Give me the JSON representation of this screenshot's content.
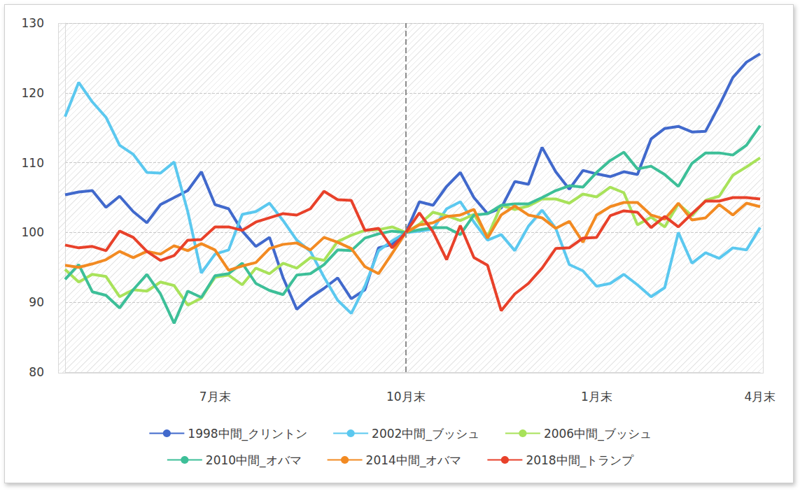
{
  "chart_data": {
    "type": "line",
    "categories": [
      null,
      null,
      null,
      null,
      null,
      null,
      null,
      null,
      null,
      null,
      null,
      "7月末",
      null,
      null,
      null,
      null,
      null,
      null,
      null,
      null,
      null,
      null,
      null,
      null,
      null,
      "10月末",
      null,
      null,
      null,
      null,
      null,
      null,
      null,
      null,
      null,
      null,
      null,
      null,
      null,
      "1月末",
      null,
      null,
      null,
      null,
      null,
      null,
      null,
      null,
      null,
      null,
      null,
      "4月末"
    ],
    "series": [
      {
        "name": "1998中間_クリントン",
        "color": "#4169cc",
        "values": [
          105.4,
          105.8,
          106,
          103.6,
          105.2,
          103,
          101.4,
          104,
          105,
          106,
          108.7,
          104,
          103.4,
          100.2,
          98,
          99.3,
          93.5,
          89,
          90.7,
          92,
          93.5,
          90.5,
          91.8,
          97.8,
          98.3,
          100,
          104.4,
          103.9,
          106.6,
          108.6,
          105,
          102.7,
          103.5,
          107.3,
          106.9,
          112.2,
          108.7,
          106.2,
          108.9,
          108.4,
          108,
          108.7,
          108.3,
          113.4,
          114.9,
          115.2,
          114.4,
          114.5,
          118.2,
          122.2,
          124.4,
          125.6
        ]
      },
      {
        "name": "2002中間_ブッシュ",
        "color": "#5bc8ef",
        "values": [
          116.6,
          121.5,
          118.7,
          116.5,
          112.5,
          111.2,
          108.6,
          108.5,
          110.1,
          103,
          94.2,
          96.9,
          97.5,
          102.6,
          103,
          104.2,
          101.7,
          98.9,
          97.3,
          93.6,
          90.3,
          88.4,
          92.3,
          97.4,
          98.8,
          100,
          100.2,
          100.5,
          103.4,
          104.4,
          101.5,
          98.9,
          99.7,
          97.4,
          100.9,
          103.2,
          100.6,
          95.4,
          94.5,
          92.3,
          92.7,
          94,
          92.5,
          90.8,
          92.1,
          100,
          95.6,
          97.1,
          96.3,
          97.8,
          97.5,
          100.7
        ]
      },
      {
        "name": "2006中間_ブッシュ",
        "color": "#a8e25a",
        "values": [
          94.7,
          92.9,
          94,
          93.7,
          90.8,
          91.8,
          91.6,
          92.9,
          92.4,
          89.6,
          90.6,
          93.6,
          93.9,
          92.5,
          94.9,
          94.1,
          95.6,
          94.9,
          96.4,
          96,
          98.7,
          99.6,
          100.3,
          100.4,
          100.8,
          100,
          101.2,
          102.9,
          102.4,
          101.7,
          102.6,
          99.4,
          103.9,
          103.3,
          103.8,
          104.8,
          104.8,
          104.2,
          105.5,
          105.1,
          106.5,
          105.7,
          101.1,
          102.2,
          100.8,
          104.1,
          102.4,
          104.6,
          105.2,
          108.2,
          109.4,
          110.7
        ]
      },
      {
        "name": "2010中間_オバマ",
        "color": "#3dbf98",
        "values": [
          93.3,
          95.4,
          91.5,
          91,
          89.2,
          91.8,
          94,
          91.2,
          87,
          91.6,
          90.7,
          93.8,
          94.1,
          95.6,
          92.7,
          91.7,
          91.1,
          93.9,
          94.1,
          95.4,
          97.5,
          97.4,
          99.2,
          99.8,
          100.2,
          100,
          100.4,
          100.7,
          100.7,
          99.7,
          102.5,
          102.7,
          103.9,
          104.1,
          104.1,
          105,
          106,
          106.7,
          106.5,
          108.6,
          110.3,
          111.5,
          109.1,
          109.5,
          108.3,
          106.6,
          109.9,
          111.4,
          111.4,
          111.1,
          112.5,
          115.3
        ]
      },
      {
        "name": "2014中間_オバマ",
        "color": "#f28a22",
        "values": [
          95.3,
          95,
          95.5,
          96.1,
          97.3,
          96.4,
          97.3,
          96.9,
          98.1,
          97.4,
          98.4,
          97.5,
          94.6,
          95.2,
          95.7,
          97.7,
          98.3,
          98.5,
          97.5,
          99.3,
          98.6,
          97.7,
          95.1,
          94.1,
          97,
          100,
          101.1,
          101.4,
          102.3,
          102.5,
          103.3,
          99.2,
          102.5,
          103.8,
          102.5,
          102.1,
          100.6,
          101.6,
          98.6,
          102.5,
          103.7,
          104.3,
          104.3,
          102.5,
          101.9,
          104.2,
          101.8,
          102.1,
          104,
          102.5,
          104.2,
          103.7
        ]
      },
      {
        "name": "2018中間_トランプ",
        "color": "#e8412a",
        "values": [
          98.2,
          97.8,
          98,
          97.4,
          100.2,
          99.3,
          97.3,
          96,
          96.7,
          98.9,
          99,
          100.8,
          100.8,
          100.3,
          101.5,
          102.1,
          102.7,
          102.5,
          103.4,
          105.9,
          104.7,
          104.6,
          100.3,
          100.6,
          97.8,
          100,
          102.8,
          100.1,
          96.1,
          101,
          96.4,
          95.3,
          88.8,
          91.2,
          92.7,
          94.9,
          97.7,
          97.8,
          99.2,
          99.3,
          102.4,
          103.1,
          102.9,
          100.7,
          102.3,
          100.8,
          102.7,
          104.5,
          104.5,
          105,
          105,
          104.8
        ]
      }
    ],
    "ylim": [
      80,
      130
    ],
    "yticks": [
      80,
      90,
      100,
      110,
      120,
      130
    ],
    "grid": true,
    "legend": "bottom"
  }
}
